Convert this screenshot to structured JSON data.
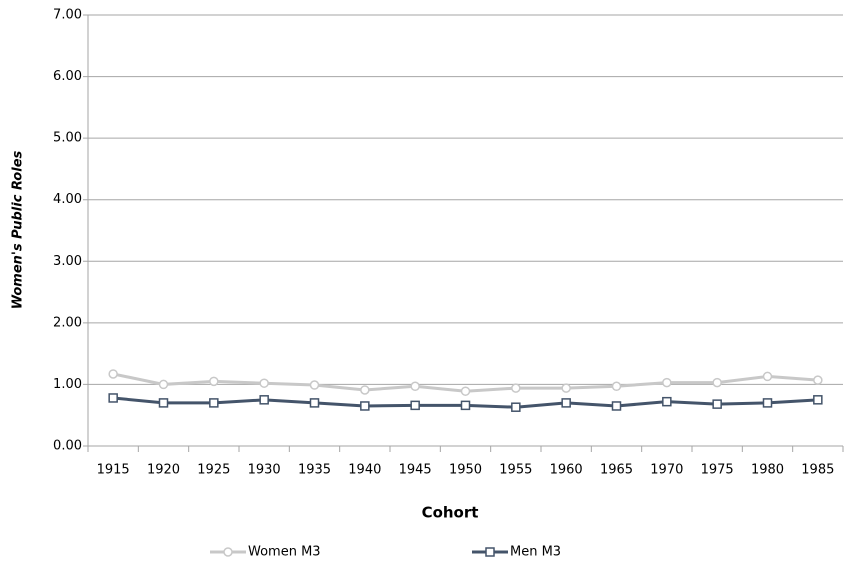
{
  "chart_data": {
    "type": "line",
    "y_label": "Women's Public Roles",
    "x_label": "Cohort",
    "categories": [
      "1915",
      "1920",
      "1925",
      "1930",
      "1935",
      "1940",
      "1945",
      "1950",
      "1955",
      "1960",
      "1965",
      "1970",
      "1975",
      "1980",
      "1985"
    ],
    "series": [
      {
        "name": "Women M3",
        "color": "#c8c8c8",
        "marker": "circle",
        "values": [
          1.17,
          1.0,
          1.05,
          1.02,
          0.99,
          0.91,
          0.97,
          0.89,
          0.94,
          0.94,
          0.97,
          1.03,
          1.03,
          1.13,
          1.07
        ]
      },
      {
        "name": "Men M3",
        "color": "#44546a",
        "marker": "square",
        "values": [
          0.78,
          0.7,
          0.7,
          0.75,
          0.7,
          0.65,
          0.66,
          0.66,
          0.63,
          0.7,
          0.65,
          0.72,
          0.68,
          0.7,
          0.75
        ]
      }
    ],
    "ylim": [
      0,
      7
    ],
    "yticks": [
      {
        "value": 0,
        "label": "0.00"
      },
      {
        "value": 1,
        "label": "1.00"
      },
      {
        "value": 2,
        "label": "2.00"
      },
      {
        "value": 3,
        "label": "3.00"
      },
      {
        "value": 4,
        "label": "4.00"
      },
      {
        "value": 5,
        "label": "5.00"
      },
      {
        "value": 6,
        "label": "6.00"
      },
      {
        "value": 7,
        "label": "7.00"
      }
    ],
    "grid": true,
    "legend": "bottom"
  }
}
